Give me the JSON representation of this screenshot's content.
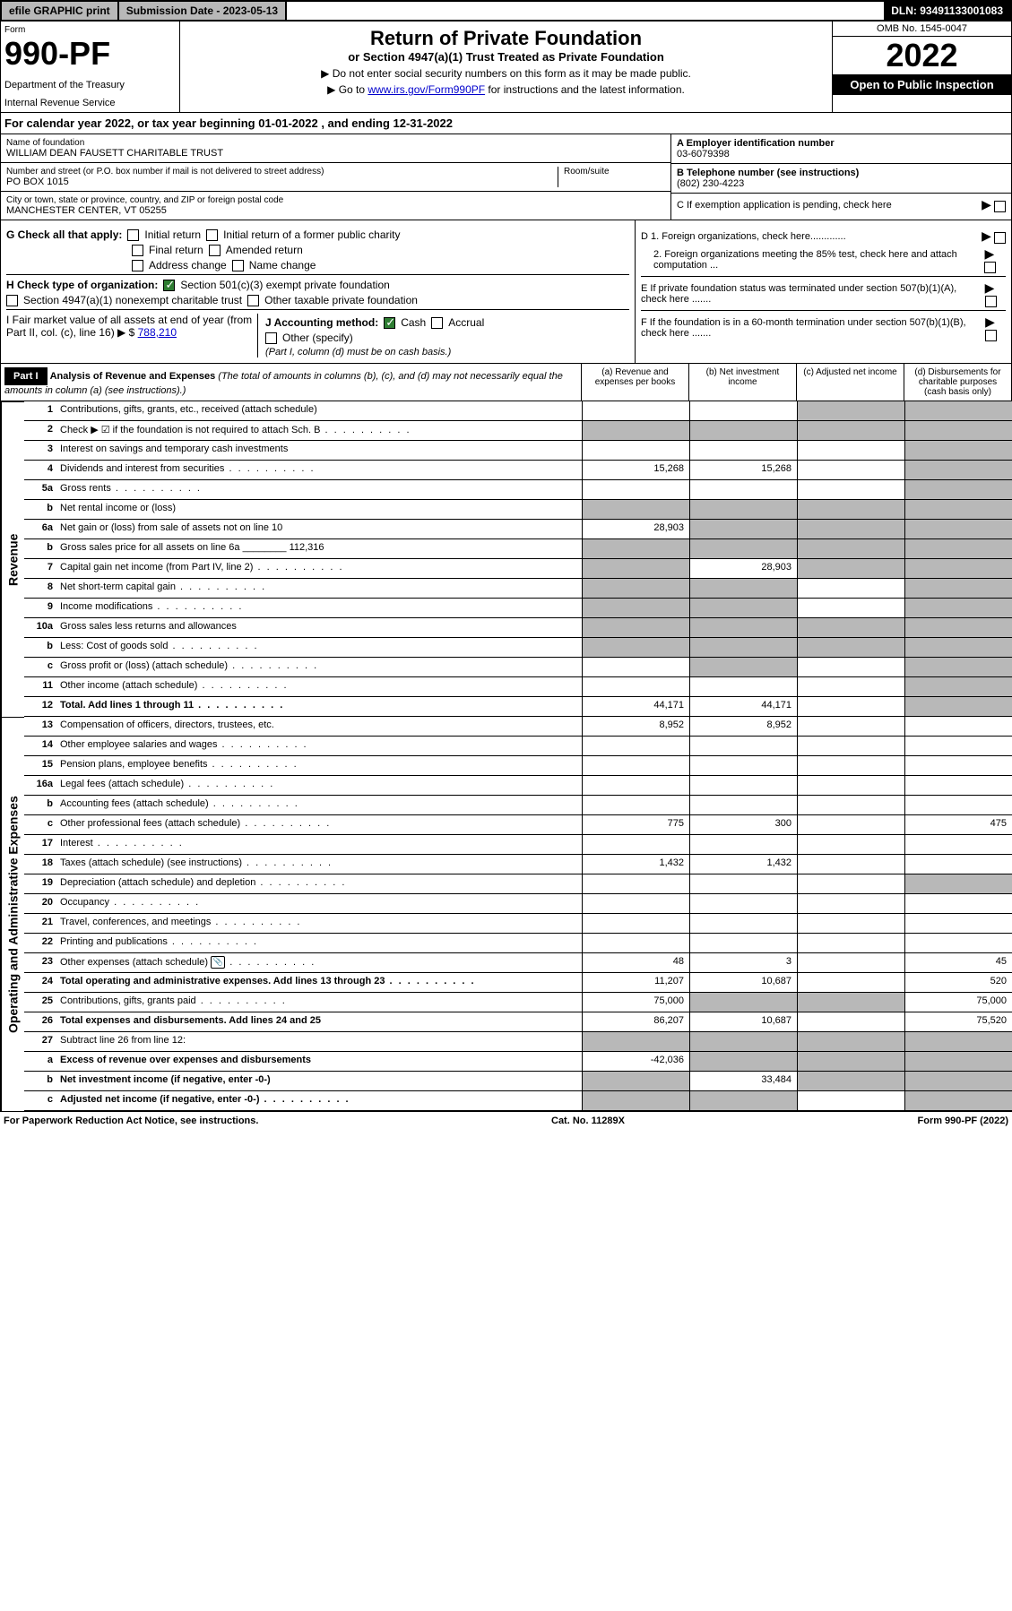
{
  "topbar": {
    "efile": "efile GRAPHIC print",
    "submission": "Submission Date - 2023-05-13",
    "dln": "DLN: 93491133001083"
  },
  "header": {
    "form_label": "Form",
    "form_num": "990-PF",
    "dept1": "Department of the Treasury",
    "dept2": "Internal Revenue Service",
    "title": "Return of Private Foundation",
    "subtitle": "or Section 4947(a)(1) Trust Treated as Private Foundation",
    "note1": "▶ Do not enter social security numbers on this form as it may be made public.",
    "note2_pre": "▶ Go to ",
    "note2_link": "www.irs.gov/Form990PF",
    "note2_post": " for instructions and the latest information.",
    "omb": "OMB No. 1545-0047",
    "year": "2022",
    "open": "Open to Public Inspection"
  },
  "cal_year": "For calendar year 2022, or tax year beginning 01-01-2022                              , and ending 12-31-2022",
  "info": {
    "name_label": "Name of foundation",
    "name": "WILLIAM DEAN FAUSETT CHARITABLE TRUST",
    "addr_label": "Number and street (or P.O. box number if mail is not delivered to street address)",
    "addr": "PO BOX 1015",
    "room_label": "Room/suite",
    "city_label": "City or town, state or province, country, and ZIP or foreign postal code",
    "city": "MANCHESTER CENTER, VT  05255",
    "ein_label": "A Employer identification number",
    "ein": "03-6079398",
    "phone_label": "B Telephone number (see instructions)",
    "phone": "(802) 230-4223",
    "c_label": "C If exemption application is pending, check here"
  },
  "checks": {
    "g_label": "G Check all that apply:",
    "g1": "Initial return",
    "g2": "Initial return of a former public charity",
    "g3": "Final return",
    "g4": "Amended return",
    "g5": "Address change",
    "g6": "Name change",
    "h_label": "H Check type of organization:",
    "h1": "Section 501(c)(3) exempt private foundation",
    "h2": "Section 4947(a)(1) nonexempt charitable trust",
    "h3": "Other taxable private foundation",
    "i_label": "I Fair market value of all assets at end of year (from Part II, col. (c), line 16) ▶ $",
    "i_val": "788,210",
    "j_label": "J Accounting method:",
    "j1": "Cash",
    "j2": "Accrual",
    "j3": "Other (specify)",
    "j_note": "(Part I, column (d) must be on cash basis.)",
    "d1": "D 1. Foreign organizations, check here.............",
    "d2": "2. Foreign organizations meeting the 85% test, check here and attach computation ...",
    "e": "E  If private foundation status was terminated under section 507(b)(1)(A), check here .......",
    "f": "F  If the foundation is in a 60-month termination under section 507(b)(1)(B), check here .......",
    "arrow": "▶"
  },
  "part1": {
    "label": "Part I",
    "title": "Analysis of Revenue and Expenses",
    "desc": " (The total of amounts in columns (b), (c), and (d) may not necessarily equal the amounts in column (a) (see instructions).)",
    "col_a": "(a)   Revenue and expenses per books",
    "col_b": "(b)   Net investment income",
    "col_c": "(c)   Adjusted net income",
    "col_d": "(d)  Disbursements for charitable purposes (cash basis only)"
  },
  "sides": {
    "revenue": "Revenue",
    "opex": "Operating and Administrative Expenses"
  },
  "rows": [
    {
      "n": "1",
      "d": "Contributions, gifts, grants, etc., received (attach schedule)",
      "a": "",
      "b": "",
      "c": "s",
      "dd": "s"
    },
    {
      "n": "2",
      "d": "Check ▶ ☑ if the foundation is not required to attach Sch. B",
      "dots": true,
      "a": "s",
      "b": "s",
      "c": "s",
      "dd": "s"
    },
    {
      "n": "3",
      "d": "Interest on savings and temporary cash investments",
      "a": "",
      "b": "",
      "c": "",
      "dd": "s"
    },
    {
      "n": "4",
      "d": "Dividends and interest from securities",
      "dots": true,
      "a": "15,268",
      "b": "15,268",
      "c": "",
      "dd": "s"
    },
    {
      "n": "5a",
      "d": "Gross rents",
      "dots": true,
      "a": "",
      "b": "",
      "c": "",
      "dd": "s"
    },
    {
      "n": "b",
      "d": "Net rental income or (loss)",
      "a": "s",
      "b": "s",
      "c": "s",
      "dd": "s"
    },
    {
      "n": "6a",
      "d": "Net gain or (loss) from sale of assets not on line 10",
      "a": "28,903",
      "b": "s",
      "c": "s",
      "dd": "s"
    },
    {
      "n": "b",
      "d": "Gross sales price for all assets on line 6a ________ 112,316",
      "a": "s",
      "b": "s",
      "c": "s",
      "dd": "s"
    },
    {
      "n": "7",
      "d": "Capital gain net income (from Part IV, line 2)",
      "dots": true,
      "a": "s",
      "b": "28,903",
      "c": "s",
      "dd": "s"
    },
    {
      "n": "8",
      "d": "Net short-term capital gain",
      "dots": true,
      "a": "s",
      "b": "s",
      "c": "",
      "dd": "s"
    },
    {
      "n": "9",
      "d": "Income modifications",
      "dots": true,
      "a": "s",
      "b": "s",
      "c": "",
      "dd": "s"
    },
    {
      "n": "10a",
      "d": "Gross sales less returns and allowances",
      "a": "s",
      "b": "s",
      "c": "s",
      "dd": "s"
    },
    {
      "n": "b",
      "d": "Less: Cost of goods sold",
      "dots": true,
      "a": "s",
      "b": "s",
      "c": "s",
      "dd": "s"
    },
    {
      "n": "c",
      "d": "Gross profit or (loss) (attach schedule)",
      "dots": true,
      "a": "",
      "b": "s",
      "c": "",
      "dd": "s"
    },
    {
      "n": "11",
      "d": "Other income (attach schedule)",
      "dots": true,
      "a": "",
      "b": "",
      "c": "",
      "dd": "s"
    },
    {
      "n": "12",
      "d": "Total. Add lines 1 through 11",
      "dots": true,
      "bold": true,
      "a": "44,171",
      "b": "44,171",
      "c": "",
      "dd": "s"
    },
    {
      "n": "13",
      "d": "Compensation of officers, directors, trustees, etc.",
      "a": "8,952",
      "b": "8,952",
      "c": "",
      "dd": ""
    },
    {
      "n": "14",
      "d": "Other employee salaries and wages",
      "dots": true,
      "a": "",
      "b": "",
      "c": "",
      "dd": ""
    },
    {
      "n": "15",
      "d": "Pension plans, employee benefits",
      "dots": true,
      "a": "",
      "b": "",
      "c": "",
      "dd": ""
    },
    {
      "n": "16a",
      "d": "Legal fees (attach schedule)",
      "dots": true,
      "a": "",
      "b": "",
      "c": "",
      "dd": ""
    },
    {
      "n": "b",
      "d": "Accounting fees (attach schedule)",
      "dots": true,
      "a": "",
      "b": "",
      "c": "",
      "dd": ""
    },
    {
      "n": "c",
      "d": "Other professional fees (attach schedule)",
      "dots": true,
      "a": "775",
      "b": "300",
      "c": "",
      "dd": "475"
    },
    {
      "n": "17",
      "d": "Interest",
      "dots": true,
      "a": "",
      "b": "",
      "c": "",
      "dd": ""
    },
    {
      "n": "18",
      "d": "Taxes (attach schedule) (see instructions)",
      "dots": true,
      "a": "1,432",
      "b": "1,432",
      "c": "",
      "dd": ""
    },
    {
      "n": "19",
      "d": "Depreciation (attach schedule) and depletion",
      "dots": true,
      "a": "",
      "b": "",
      "c": "",
      "dd": "s"
    },
    {
      "n": "20",
      "d": "Occupancy",
      "dots": true,
      "a": "",
      "b": "",
      "c": "",
      "dd": ""
    },
    {
      "n": "21",
      "d": "Travel, conferences, and meetings",
      "dots": true,
      "a": "",
      "b": "",
      "c": "",
      "dd": ""
    },
    {
      "n": "22",
      "d": "Printing and publications",
      "dots": true,
      "a": "",
      "b": "",
      "c": "",
      "dd": ""
    },
    {
      "n": "23",
      "d": "Other expenses (attach schedule)",
      "dots": true,
      "icon": true,
      "a": "48",
      "b": "3",
      "c": "",
      "dd": "45"
    },
    {
      "n": "24",
      "d": "Total operating and administrative expenses. Add lines 13 through 23",
      "dots": true,
      "bold": true,
      "a": "11,207",
      "b": "10,687",
      "c": "",
      "dd": "520"
    },
    {
      "n": "25",
      "d": "Contributions, gifts, grants paid",
      "dots": true,
      "a": "75,000",
      "b": "s",
      "c": "s",
      "dd": "75,000"
    },
    {
      "n": "26",
      "d": "Total expenses and disbursements. Add lines 24 and 25",
      "bold": true,
      "a": "86,207",
      "b": "10,687",
      "c": "",
      "dd": "75,520"
    },
    {
      "n": "27",
      "d": "Subtract line 26 from line 12:",
      "a": "s",
      "b": "s",
      "c": "s",
      "dd": "s"
    },
    {
      "n": "a",
      "d": "Excess of revenue over expenses and disbursements",
      "bold": true,
      "a": "-42,036",
      "b": "s",
      "c": "s",
      "dd": "s"
    },
    {
      "n": "b",
      "d": "Net investment income (if negative, enter -0-)",
      "bold": true,
      "a": "s",
      "b": "33,484",
      "c": "s",
      "dd": "s"
    },
    {
      "n": "c",
      "d": "Adjusted net income (if negative, enter -0-)",
      "dots": true,
      "bold": true,
      "a": "s",
      "b": "s",
      "c": "",
      "dd": "s"
    }
  ],
  "footer": {
    "left": "For Paperwork Reduction Act Notice, see instructions.",
    "mid": "Cat. No. 11289X",
    "right": "Form 990-PF (2022)"
  }
}
